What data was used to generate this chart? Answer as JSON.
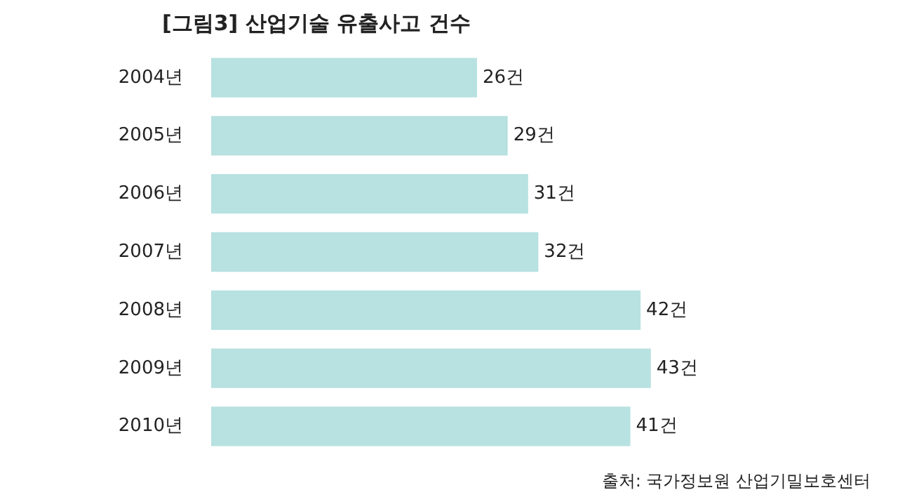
{
  "chart_data": {
    "type": "bar",
    "orientation": "horizontal",
    "title": "[그림3] 산업기술 유출사고 건수",
    "categories": [
      "2004년",
      "2005년",
      "2006년",
      "2007년",
      "2008년",
      "2009년",
      "2010년"
    ],
    "values": [
      26,
      29,
      31,
      32,
      42,
      43,
      41
    ],
    "value_labels": [
      "26건",
      "29건",
      "31건",
      "32건",
      "42건",
      "43건",
      "41건"
    ],
    "color": "#b8e1e1",
    "grid": false,
    "annotations": [
      "출처: 국가정보원 산업기밀보호센터"
    ]
  }
}
